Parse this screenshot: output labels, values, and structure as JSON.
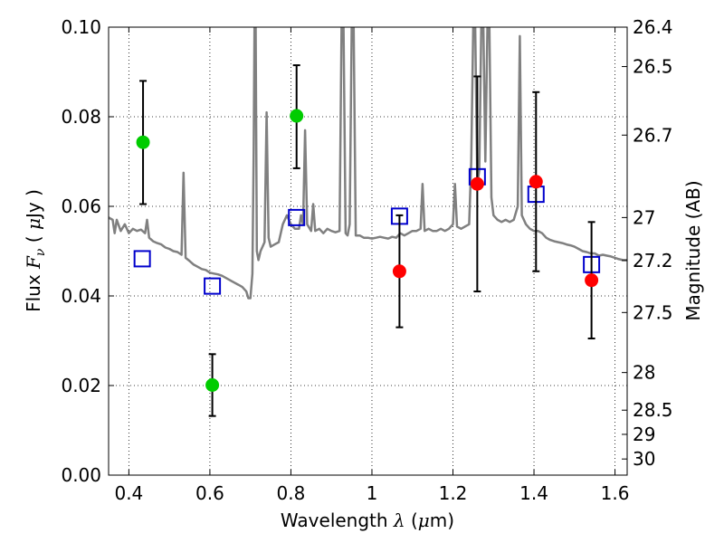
{
  "chart_data": {
    "type": "scatter",
    "xlabel": "Wavelength  λ (μm)",
    "ylabel": "Flux  Fν  ( μJy )",
    "ylabel_parts": {
      "prefix": "Flux  ",
      "var": "F",
      "sub": "ν",
      "open": "  (  ",
      "mu": "μ",
      "unit": "Jy",
      "close": " )"
    },
    "xlabel_parts": {
      "prefix": "Wavelength  ",
      "var": "λ",
      "open": " (",
      "mu": "μ",
      "unit": "m)"
    },
    "y2label": "Magnitude (AB)",
    "xlim": [
      0.35,
      1.63
    ],
    "ylim": [
      0.0,
      0.1
    ],
    "grid": true,
    "x_ticks": [
      0.4,
      0.6,
      0.8,
      1.0,
      1.2,
      1.4,
      1.6
    ],
    "x_tick_labels": [
      "0.4",
      "0.6",
      "0.8",
      "1",
      "1.2",
      "1.4",
      "1.6"
    ],
    "y_ticks": [
      0.0,
      0.02,
      0.04,
      0.06,
      0.08,
      0.1
    ],
    "y_tick_labels": [
      "0.00",
      "0.02",
      "0.04",
      "0.06",
      "0.08",
      "0.10"
    ],
    "y2_ticks": [
      {
        "label": "26.4",
        "flux": 0.1
      },
      {
        "label": "26.5",
        "flux": 0.0912
      },
      {
        "label": "26.7",
        "flux": 0.0759
      },
      {
        "label": "27",
        "flux": 0.0575
      },
      {
        "label": "27.2",
        "flux": 0.0479
      },
      {
        "label": "27.5",
        "flux": 0.0363
      },
      {
        "label": "28",
        "flux": 0.0229
      },
      {
        "label": "28.5",
        "flux": 0.0145
      },
      {
        "label": "29",
        "flux": 0.0091
      },
      {
        "label": "30",
        "flux": 0.0036
      }
    ],
    "series": [
      {
        "kind": "model-spectrum",
        "color": "#808080",
        "points": [
          [
            0.35,
            0.0575
          ],
          [
            0.36,
            0.057
          ],
          [
            0.365,
            0.054
          ],
          [
            0.37,
            0.057
          ],
          [
            0.38,
            0.0545
          ],
          [
            0.39,
            0.056
          ],
          [
            0.4,
            0.054
          ],
          [
            0.41,
            0.055
          ],
          [
            0.42,
            0.0545
          ],
          [
            0.43,
            0.0548
          ],
          [
            0.44,
            0.054
          ],
          [
            0.445,
            0.057
          ],
          [
            0.45,
            0.053
          ],
          [
            0.46,
            0.0522
          ],
          [
            0.47,
            0.0518
          ],
          [
            0.48,
            0.0515
          ],
          [
            0.49,
            0.0508
          ],
          [
            0.5,
            0.0505
          ],
          [
            0.51,
            0.05
          ],
          [
            0.52,
            0.0498
          ],
          [
            0.53,
            0.0492
          ],
          [
            0.535,
            0.0675
          ],
          [
            0.54,
            0.0485
          ],
          [
            0.55,
            0.0478
          ],
          [
            0.56,
            0.047
          ],
          [
            0.57,
            0.0465
          ],
          [
            0.58,
            0.046
          ],
          [
            0.59,
            0.0458
          ],
          [
            0.6,
            0.0452
          ],
          [
            0.61,
            0.045
          ],
          [
            0.62,
            0.0448
          ],
          [
            0.63,
            0.0445
          ],
          [
            0.64,
            0.044
          ],
          [
            0.65,
            0.0435
          ],
          [
            0.66,
            0.043
          ],
          [
            0.67,
            0.0425
          ],
          [
            0.68,
            0.042
          ],
          [
            0.69,
            0.041
          ],
          [
            0.695,
            0.0395
          ],
          [
            0.7,
            0.0395
          ],
          [
            0.705,
            0.045
          ],
          [
            0.708,
            0.072
          ],
          [
            0.71,
            0.1
          ],
          [
            0.713,
            0.1
          ],
          [
            0.716,
            0.05
          ],
          [
            0.72,
            0.048
          ],
          [
            0.725,
            0.05
          ],
          [
            0.73,
            0.051
          ],
          [
            0.735,
            0.052
          ],
          [
            0.74,
            0.081
          ],
          [
            0.745,
            0.053
          ],
          [
            0.75,
            0.051
          ],
          [
            0.76,
            0.0515
          ],
          [
            0.77,
            0.052
          ],
          [
            0.78,
            0.056
          ],
          [
            0.79,
            0.058
          ],
          [
            0.8,
            0.056
          ],
          [
            0.81,
            0.055
          ],
          [
            0.82,
            0.055
          ],
          [
            0.825,
            0.058
          ],
          [
            0.83,
            0.056
          ],
          [
            0.835,
            0.077
          ],
          [
            0.84,
            0.056
          ],
          [
            0.85,
            0.0545
          ],
          [
            0.855,
            0.0605
          ],
          [
            0.86,
            0.0545
          ],
          [
            0.87,
            0.055
          ],
          [
            0.88,
            0.054
          ],
          [
            0.89,
            0.055
          ],
          [
            0.9,
            0.0545
          ],
          [
            0.91,
            0.0542
          ],
          [
            0.92,
            0.0545
          ],
          [
            0.925,
            0.1
          ],
          [
            0.93,
            0.1
          ],
          [
            0.935,
            0.054
          ],
          [
            0.94,
            0.0535
          ],
          [
            0.945,
            0.056
          ],
          [
            0.95,
            0.1
          ],
          [
            0.955,
            0.1
          ],
          [
            0.96,
            0.0535
          ],
          [
            0.97,
            0.0535
          ],
          [
            0.98,
            0.053
          ],
          [
            0.99,
            0.053
          ],
          [
            1.0,
            0.0528
          ],
          [
            1.01,
            0.053
          ],
          [
            1.02,
            0.0532
          ],
          [
            1.03,
            0.053
          ],
          [
            1.04,
            0.0528
          ],
          [
            1.05,
            0.0532
          ],
          [
            1.06,
            0.053
          ],
          [
            1.07,
            0.054
          ],
          [
            1.08,
            0.0535
          ],
          [
            1.09,
            0.054
          ],
          [
            1.1,
            0.0545
          ],
          [
            1.11,
            0.0545
          ],
          [
            1.12,
            0.055
          ],
          [
            1.125,
            0.065
          ],
          [
            1.13,
            0.0545
          ],
          [
            1.14,
            0.055
          ],
          [
            1.15,
            0.0545
          ],
          [
            1.16,
            0.0545
          ],
          [
            1.17,
            0.055
          ],
          [
            1.18,
            0.0545
          ],
          [
            1.19,
            0.055
          ],
          [
            1.2,
            0.056
          ],
          [
            1.205,
            0.065
          ],
          [
            1.21,
            0.0555
          ],
          [
            1.22,
            0.055
          ],
          [
            1.23,
            0.0555
          ],
          [
            1.24,
            0.056
          ],
          [
            1.245,
            0.07
          ],
          [
            1.25,
            0.1
          ],
          [
            1.255,
            0.1
          ],
          [
            1.26,
            0.065
          ],
          [
            1.265,
            0.068
          ],
          [
            1.27,
            0.1
          ],
          [
            1.275,
            0.1
          ],
          [
            1.28,
            0.07
          ],
          [
            1.285,
            0.1
          ],
          [
            1.29,
            0.1
          ],
          [
            1.295,
            0.062
          ],
          [
            1.3,
            0.058
          ],
          [
            1.31,
            0.057
          ],
          [
            1.32,
            0.0565
          ],
          [
            1.33,
            0.057
          ],
          [
            1.34,
            0.0565
          ],
          [
            1.35,
            0.057
          ],
          [
            1.36,
            0.06
          ],
          [
            1.365,
            0.098
          ],
          [
            1.37,
            0.058
          ],
          [
            1.38,
            0.056
          ],
          [
            1.39,
            0.055
          ],
          [
            1.4,
            0.0545
          ],
          [
            1.41,
            0.0545
          ],
          [
            1.42,
            0.054
          ],
          [
            1.43,
            0.053
          ],
          [
            1.44,
            0.0525
          ],
          [
            1.45,
            0.0522
          ],
          [
            1.46,
            0.052
          ],
          [
            1.47,
            0.0518
          ],
          [
            1.48,
            0.0515
          ],
          [
            1.49,
            0.0513
          ],
          [
            1.5,
            0.051
          ],
          [
            1.51,
            0.0505
          ],
          [
            1.52,
            0.05
          ],
          [
            1.53,
            0.0498
          ],
          [
            1.54,
            0.0495
          ],
          [
            1.55,
            0.0495
          ],
          [
            1.56,
            0.049
          ],
          [
            1.57,
            0.0492
          ],
          [
            1.58,
            0.049
          ],
          [
            1.59,
            0.0488
          ],
          [
            1.6,
            0.0485
          ],
          [
            1.61,
            0.0482
          ],
          [
            1.62,
            0.048
          ],
          [
            1.63,
            0.048
          ]
        ]
      },
      {
        "kind": "model-photometry",
        "marker": "open-square",
        "color": "#0000cc",
        "points": [
          [
            0.433,
            0.0483
          ],
          [
            0.606,
            0.0422
          ],
          [
            0.814,
            0.0575
          ],
          [
            1.068,
            0.0578
          ],
          [
            1.26,
            0.0666
          ],
          [
            1.405,
            0.0627
          ],
          [
            1.542,
            0.047
          ]
        ]
      },
      {
        "kind": "detections",
        "marker": "filled-circle",
        "color": "#ff0000",
        "points": [
          {
            "x": 1.068,
            "y": 0.0455,
            "err_low": 0.033,
            "err_high": 0.058
          },
          {
            "x": 1.26,
            "y": 0.065,
            "err_low": 0.041,
            "err_high": 0.089
          },
          {
            "x": 1.405,
            "y": 0.0655,
            "err_low": 0.0455,
            "err_high": 0.0855
          },
          {
            "x": 1.542,
            "y": 0.0435,
            "err_low": 0.0305,
            "err_high": 0.0565
          }
        ]
      },
      {
        "kind": "detections",
        "marker": "filled-circle",
        "color": "#00cc00",
        "points": [
          {
            "x": 0.435,
            "y": 0.0743,
            "err_low": 0.0605,
            "err_high": 0.088
          },
          {
            "x": 0.606,
            "y": 0.0201,
            "err_low": 0.0132,
            "err_high": 0.027
          },
          {
            "x": 0.814,
            "y": 0.0802,
            "err_low": 0.0685,
            "err_high": 0.0915
          }
        ]
      }
    ]
  }
}
